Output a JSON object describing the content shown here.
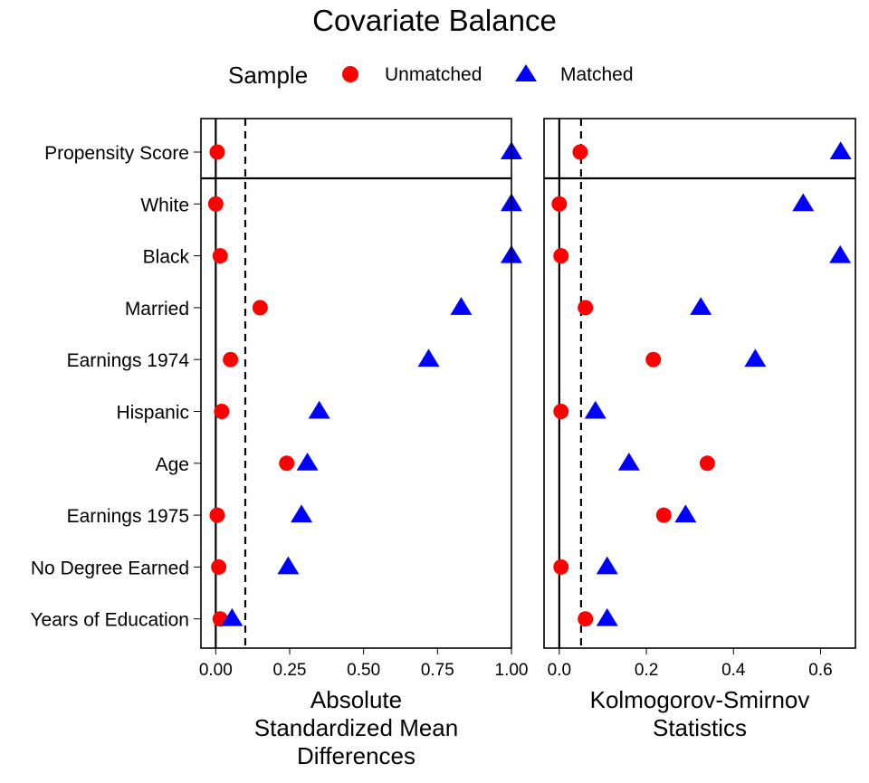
{
  "chart_data": {
    "type": "scatter",
    "title": "Covariate Balance",
    "legend": {
      "title": "Sample",
      "placement": "top",
      "entries": [
        {
          "name": "Unmatched",
          "shape": "circle",
          "color": "#ff0000"
        },
        {
          "name": "Matched",
          "shape": "triangle",
          "color": "#0000ff"
        }
      ]
    },
    "categories": [
      "Propensity Score",
      "White",
      "Black",
      "Married",
      "Earnings 1974",
      "Hispanic",
      "Age",
      "Earnings 1975",
      "No Degree Earned",
      "Years of Education"
    ],
    "panels": [
      {
        "xlabel": [
          "Absolute",
          "Standardized Mean",
          "Differences"
        ],
        "xlim": [
          -0.05,
          1.0
        ],
        "ticks": [
          0,
          0.25,
          0.5,
          0.75,
          1.0
        ],
        "tick_labels": [
          "0.00",
          "0.25",
          "0.50",
          "0.75",
          "1.00"
        ],
        "threshold": 0.1,
        "series": [
          {
            "name": "Unmatched",
            "values": [
              0.005,
              0.0,
              0.015,
              0.15,
              0.05,
              0.02,
              0.24,
              0.005,
              0.01,
              0.015
            ]
          },
          {
            "name": "Matched",
            "values": [
              1.0,
              1.0,
              1.0,
              0.83,
              0.72,
              0.35,
              0.31,
              0.29,
              0.245,
              0.055
            ]
          }
        ]
      },
      {
        "xlabel": [
          "Kolmogorov-Smirnov",
          "Statistics"
        ],
        "xlim": [
          -0.035,
          0.68
        ],
        "ticks": [
          0,
          0.2,
          0.4,
          0.6
        ],
        "tick_labels": [
          "0.0",
          "0.2",
          "0.4",
          "0.6"
        ],
        "threshold": 0.05,
        "series": [
          {
            "name": "Unmatched",
            "values": [
              0.048,
              0.0,
              0.004,
              0.06,
              0.216,
              0.004,
              0.34,
              0.24,
              0.004,
              0.06
            ]
          },
          {
            "name": "Matched",
            "values": [
              0.646,
              0.56,
              0.645,
              0.325,
              0.45,
              0.083,
              0.16,
              0.29,
              0.11,
              0.11
            ]
          }
        ]
      }
    ]
  }
}
